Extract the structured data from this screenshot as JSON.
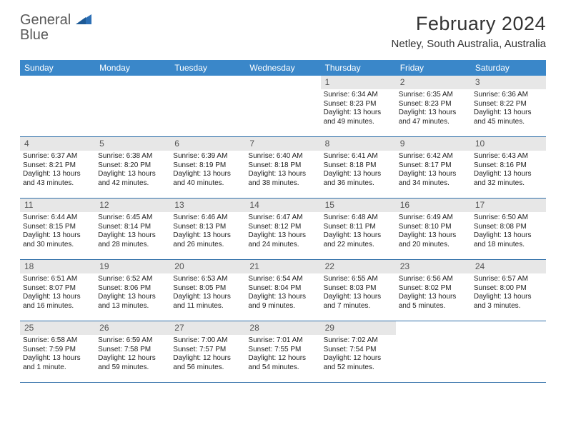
{
  "branding": {
    "logo_word1": "General",
    "logo_word2": "Blue"
  },
  "header": {
    "month_title": "February 2024",
    "location": "Netley, South Australia, Australia"
  },
  "theme": {
    "header_bg": "#3a87c9",
    "header_fg": "#ffffff",
    "daynum_bg": "#e7e7e7",
    "border_color": "#2f6ea8",
    "text_color": "#222222",
    "logo_gray": "#5a5a5a",
    "logo_blue": "#2c6fb5"
  },
  "calendar": {
    "day_headers": [
      "Sunday",
      "Monday",
      "Tuesday",
      "Wednesday",
      "Thursday",
      "Friday",
      "Saturday"
    ],
    "leading_blanks": 4,
    "days": [
      {
        "n": "1",
        "sunrise": "Sunrise: 6:34 AM",
        "sunset": "Sunset: 8:23 PM",
        "daylight": "Daylight: 13 hours and 49 minutes."
      },
      {
        "n": "2",
        "sunrise": "Sunrise: 6:35 AM",
        "sunset": "Sunset: 8:23 PM",
        "daylight": "Daylight: 13 hours and 47 minutes."
      },
      {
        "n": "3",
        "sunrise": "Sunrise: 6:36 AM",
        "sunset": "Sunset: 8:22 PM",
        "daylight": "Daylight: 13 hours and 45 minutes."
      },
      {
        "n": "4",
        "sunrise": "Sunrise: 6:37 AM",
        "sunset": "Sunset: 8:21 PM",
        "daylight": "Daylight: 13 hours and 43 minutes."
      },
      {
        "n": "5",
        "sunrise": "Sunrise: 6:38 AM",
        "sunset": "Sunset: 8:20 PM",
        "daylight": "Daylight: 13 hours and 42 minutes."
      },
      {
        "n": "6",
        "sunrise": "Sunrise: 6:39 AM",
        "sunset": "Sunset: 8:19 PM",
        "daylight": "Daylight: 13 hours and 40 minutes."
      },
      {
        "n": "7",
        "sunrise": "Sunrise: 6:40 AM",
        "sunset": "Sunset: 8:18 PM",
        "daylight": "Daylight: 13 hours and 38 minutes."
      },
      {
        "n": "8",
        "sunrise": "Sunrise: 6:41 AM",
        "sunset": "Sunset: 8:18 PM",
        "daylight": "Daylight: 13 hours and 36 minutes."
      },
      {
        "n": "9",
        "sunrise": "Sunrise: 6:42 AM",
        "sunset": "Sunset: 8:17 PM",
        "daylight": "Daylight: 13 hours and 34 minutes."
      },
      {
        "n": "10",
        "sunrise": "Sunrise: 6:43 AM",
        "sunset": "Sunset: 8:16 PM",
        "daylight": "Daylight: 13 hours and 32 minutes."
      },
      {
        "n": "11",
        "sunrise": "Sunrise: 6:44 AM",
        "sunset": "Sunset: 8:15 PM",
        "daylight": "Daylight: 13 hours and 30 minutes."
      },
      {
        "n": "12",
        "sunrise": "Sunrise: 6:45 AM",
        "sunset": "Sunset: 8:14 PM",
        "daylight": "Daylight: 13 hours and 28 minutes."
      },
      {
        "n": "13",
        "sunrise": "Sunrise: 6:46 AM",
        "sunset": "Sunset: 8:13 PM",
        "daylight": "Daylight: 13 hours and 26 minutes."
      },
      {
        "n": "14",
        "sunrise": "Sunrise: 6:47 AM",
        "sunset": "Sunset: 8:12 PM",
        "daylight": "Daylight: 13 hours and 24 minutes."
      },
      {
        "n": "15",
        "sunrise": "Sunrise: 6:48 AM",
        "sunset": "Sunset: 8:11 PM",
        "daylight": "Daylight: 13 hours and 22 minutes."
      },
      {
        "n": "16",
        "sunrise": "Sunrise: 6:49 AM",
        "sunset": "Sunset: 8:10 PM",
        "daylight": "Daylight: 13 hours and 20 minutes."
      },
      {
        "n": "17",
        "sunrise": "Sunrise: 6:50 AM",
        "sunset": "Sunset: 8:08 PM",
        "daylight": "Daylight: 13 hours and 18 minutes."
      },
      {
        "n": "18",
        "sunrise": "Sunrise: 6:51 AM",
        "sunset": "Sunset: 8:07 PM",
        "daylight": "Daylight: 13 hours and 16 minutes."
      },
      {
        "n": "19",
        "sunrise": "Sunrise: 6:52 AM",
        "sunset": "Sunset: 8:06 PM",
        "daylight": "Daylight: 13 hours and 13 minutes."
      },
      {
        "n": "20",
        "sunrise": "Sunrise: 6:53 AM",
        "sunset": "Sunset: 8:05 PM",
        "daylight": "Daylight: 13 hours and 11 minutes."
      },
      {
        "n": "21",
        "sunrise": "Sunrise: 6:54 AM",
        "sunset": "Sunset: 8:04 PM",
        "daylight": "Daylight: 13 hours and 9 minutes."
      },
      {
        "n": "22",
        "sunrise": "Sunrise: 6:55 AM",
        "sunset": "Sunset: 8:03 PM",
        "daylight": "Daylight: 13 hours and 7 minutes."
      },
      {
        "n": "23",
        "sunrise": "Sunrise: 6:56 AM",
        "sunset": "Sunset: 8:02 PM",
        "daylight": "Daylight: 13 hours and 5 minutes."
      },
      {
        "n": "24",
        "sunrise": "Sunrise: 6:57 AM",
        "sunset": "Sunset: 8:00 PM",
        "daylight": "Daylight: 13 hours and 3 minutes."
      },
      {
        "n": "25",
        "sunrise": "Sunrise: 6:58 AM",
        "sunset": "Sunset: 7:59 PM",
        "daylight": "Daylight: 13 hours and 1 minute."
      },
      {
        "n": "26",
        "sunrise": "Sunrise: 6:59 AM",
        "sunset": "Sunset: 7:58 PM",
        "daylight": "Daylight: 12 hours and 59 minutes."
      },
      {
        "n": "27",
        "sunrise": "Sunrise: 7:00 AM",
        "sunset": "Sunset: 7:57 PM",
        "daylight": "Daylight: 12 hours and 56 minutes."
      },
      {
        "n": "28",
        "sunrise": "Sunrise: 7:01 AM",
        "sunset": "Sunset: 7:55 PM",
        "daylight": "Daylight: 12 hours and 54 minutes."
      },
      {
        "n": "29",
        "sunrise": "Sunrise: 7:02 AM",
        "sunset": "Sunset: 7:54 PM",
        "daylight": "Daylight: 12 hours and 52 minutes."
      }
    ],
    "trailing_blanks": 2
  }
}
